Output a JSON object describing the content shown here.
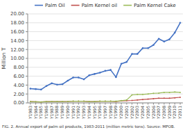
{
  "chart_data": {
    "type": "line",
    "ylabel": "Million T",
    "caption": "FIG. 2. Annual export of palm oil products, 1983-2011 (million metric tons). Source: MPOB.",
    "categories": [
      "Y1983",
      "Y1984",
      "Y1985",
      "Y1986",
      "Y1987",
      "Y1988",
      "Y1989",
      "Y1990",
      "Y1991",
      "Y1992",
      "Y1993",
      "Y1994",
      "Y1995",
      "Y1996",
      "Y1997",
      "Y1998",
      "Y1999",
      "Y2000",
      "Y2001",
      "Y2002",
      "Y2003",
      "Y2004",
      "Y2005",
      "Y2006",
      "Y2007",
      "Y2008",
      "Y2009",
      "Y2010",
      "Y2011"
    ],
    "series": [
      {
        "name": "Palm Oil",
        "color": "#4472C4",
        "values": [
          3.2,
          3.1,
          3.0,
          3.8,
          4.4,
          4.1,
          4.2,
          5.0,
          5.7,
          5.7,
          5.3,
          6.2,
          6.5,
          6.8,
          7.2,
          7.4,
          5.8,
          8.8,
          9.2,
          11.0,
          11.0,
          12.3,
          12.3,
          13.0,
          14.4,
          13.8,
          14.3,
          15.8,
          18.0
        ]
      },
      {
        "name": "Palm Kernel oil",
        "color": "#C0504D",
        "values": [
          0.3,
          0.25,
          0.2,
          0.28,
          0.3,
          0.3,
          0.3,
          0.32,
          0.38,
          0.38,
          0.38,
          0.3,
          0.3,
          0.38,
          0.38,
          0.38,
          0.28,
          0.45,
          0.5,
          0.55,
          0.65,
          0.75,
          0.85,
          0.95,
          1.05,
          1.05,
          1.05,
          1.15,
          1.25
        ]
      },
      {
        "name": "Palm Kernel Cake",
        "color": "#9BBB59",
        "values": [
          0.3,
          0.25,
          0.2,
          0.28,
          0.3,
          0.3,
          0.3,
          0.32,
          0.38,
          0.38,
          0.38,
          0.3,
          0.3,
          0.38,
          0.38,
          0.38,
          0.38,
          0.5,
          0.65,
          1.8,
          1.9,
          1.9,
          2.0,
          2.15,
          2.2,
          2.35,
          2.35,
          2.45,
          2.35
        ]
      }
    ],
    "ylim": [
      0,
      20
    ],
    "yticks": [
      {
        "value": 0,
        "label": "0.00"
      },
      {
        "value": 2,
        "label": "2.00"
      },
      {
        "value": 4,
        "label": "4.00"
      },
      {
        "value": 6,
        "label": "6.00"
      },
      {
        "value": 8,
        "label": "8.00"
      },
      {
        "value": 10,
        "label": "10.00"
      },
      {
        "value": 12,
        "label": "12.00"
      },
      {
        "value": 14,
        "label": "14.00"
      },
      {
        "value": 16,
        "label": "16.00"
      },
      {
        "value": 18,
        "label": "18.00"
      },
      {
        "value": 20,
        "label": "20.00"
      }
    ],
    "grid": true,
    "legend": "top",
    "marker": "circle"
  }
}
